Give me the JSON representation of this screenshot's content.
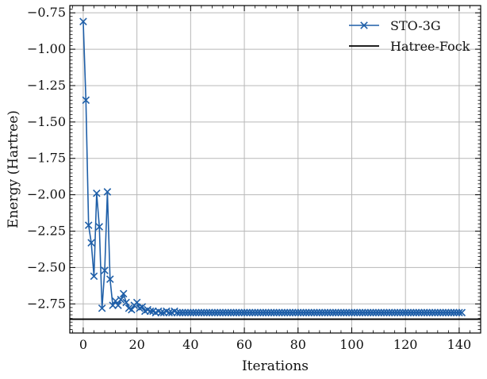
{
  "chart_data": {
    "type": "line",
    "xlabel": "Iterations",
    "ylabel": "Energy (Hartree)",
    "xlim": [
      -5,
      148
    ],
    "ylim": [
      -2.95,
      -0.7
    ],
    "xticks": [
      0,
      20,
      40,
      60,
      80,
      100,
      120,
      140
    ],
    "xtick_labels": [
      "0",
      "20",
      "40",
      "60",
      "80",
      "100",
      "120",
      "140"
    ],
    "yticks": [
      -0.75,
      -1.0,
      -1.25,
      -1.5,
      -1.75,
      -2.0,
      -2.25,
      -2.5,
      -2.75
    ],
    "ytick_labels": [
      "−0.75",
      "−1.00",
      "−1.25",
      "−1.50",
      "−1.75",
      "−2.00",
      "−2.25",
      "−2.50",
      "−2.75"
    ],
    "grid": true,
    "legend_position": "top-right",
    "series": [
      {
        "name": "STO-3G",
        "color": "#1f5fa8",
        "marker": "x",
        "y": [
          -0.81,
          -1.35,
          -2.21,
          -2.33,
          -2.56,
          -1.99,
          -2.22,
          -2.78,
          -2.52,
          -1.98,
          -2.58,
          -2.76,
          -2.73,
          -2.76,
          -2.72,
          -2.68,
          -2.74,
          -2.78,
          -2.79,
          -2.76,
          -2.74,
          -2.78,
          -2.77,
          -2.8,
          -2.79,
          -2.8,
          -2.8,
          -2.81,
          -2.8,
          -2.81,
          -2.81,
          -2.8,
          -2.81,
          -2.81,
          -2.8,
          -2.81,
          -2.81,
          -2.81,
          -2.81,
          -2.81,
          -2.81,
          -2.81,
          -2.81,
          -2.81,
          -2.81,
          -2.81,
          -2.81,
          -2.81,
          -2.81,
          -2.81,
          -2.81,
          -2.81,
          -2.81,
          -2.81,
          -2.81,
          -2.81,
          -2.81,
          -2.81,
          -2.81,
          -2.81,
          -2.81,
          -2.81,
          -2.81,
          -2.81,
          -2.81,
          -2.81,
          -2.81,
          -2.81,
          -2.81,
          -2.81,
          -2.81,
          -2.81,
          -2.81,
          -2.81,
          -2.81,
          -2.81,
          -2.81,
          -2.81,
          -2.81,
          -2.81,
          -2.81,
          -2.81,
          -2.81,
          -2.81,
          -2.81,
          -2.81,
          -2.81,
          -2.81,
          -2.81,
          -2.81,
          -2.81,
          -2.81,
          -2.81,
          -2.81,
          -2.81,
          -2.81,
          -2.81,
          -2.81,
          -2.81,
          -2.81,
          -2.81,
          -2.81,
          -2.81,
          -2.81,
          -2.81,
          -2.81,
          -2.81,
          -2.81,
          -2.81,
          -2.81,
          -2.81,
          -2.81,
          -2.81,
          -2.81,
          -2.81,
          -2.81,
          -2.81,
          -2.81,
          -2.81,
          -2.81,
          -2.81,
          -2.81,
          -2.81,
          -2.81,
          -2.81,
          -2.81,
          -2.81,
          -2.81,
          -2.81,
          -2.81,
          -2.81,
          -2.81,
          -2.81,
          -2.81,
          -2.81,
          -2.81,
          -2.81,
          -2.81,
          -2.81,
          -2.81,
          -2.81,
          -2.81
        ]
      },
      {
        "name": "Hatree-Fock",
        "color": "#000000",
        "type": "hline",
        "y_value": -2.855
      }
    ]
  }
}
